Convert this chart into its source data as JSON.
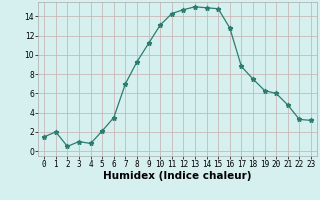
{
  "x": [
    0,
    1,
    2,
    3,
    4,
    5,
    6,
    7,
    8,
    9,
    10,
    11,
    12,
    13,
    14,
    15,
    16,
    17,
    18,
    19,
    20,
    21,
    22,
    23
  ],
  "y": [
    1.5,
    2.0,
    0.5,
    1.0,
    0.8,
    2.1,
    3.5,
    7.0,
    9.3,
    11.2,
    13.1,
    14.3,
    14.7,
    15.0,
    14.9,
    14.8,
    12.8,
    8.8,
    7.5,
    6.3,
    6.0,
    4.8,
    3.3,
    3.2
  ],
  "line_color": "#2d7d6e",
  "marker": "*",
  "marker_size": 3.5,
  "bg_color": "#d6f0f0",
  "grid_color": "#c8b8b8",
  "xlabel": "Humidex (Indice chaleur)",
  "xlim": [
    -0.5,
    23.5
  ],
  "ylim": [
    -0.5,
    15.5
  ],
  "yticks": [
    0,
    2,
    4,
    6,
    8,
    10,
    12,
    14
  ],
  "tick_fontsize": 5.5,
  "label_fontsize": 7.5
}
